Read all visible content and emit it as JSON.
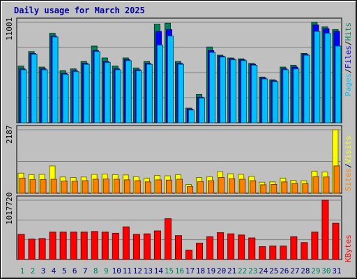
{
  "title": "Daily usage for March 2025",
  "colors": {
    "hits": "#00805c",
    "files": "#0000ff",
    "pages": "#00c0ff",
    "visits": "#ffff00",
    "sites": "#ff8000",
    "kbytes": "#ff0000",
    "weekend_day": "#00805c",
    "weekday": "#000080",
    "grid": "#808080",
    "panel_bg": "#c0c0c0"
  },
  "side_labels": {
    "top": [
      "Pages",
      "/",
      "Files",
      "/",
      "Hits"
    ],
    "mid": [
      "Sites",
      "/",
      "Visits"
    ],
    "bot": [
      "KBytes"
    ]
  },
  "chart_data": [
    {
      "type": "bar",
      "title": "Daily usage for March 2025",
      "ylabel_max": "11001",
      "ylim": [
        0,
        11001
      ],
      "categories": [
        "1",
        "2",
        "3",
        "4",
        "5",
        "6",
        "7",
        "8",
        "9",
        "10",
        "11",
        "12",
        "13",
        "14",
        "15",
        "16",
        "17",
        "18",
        "19",
        "20",
        "21",
        "22",
        "23",
        "24",
        "25",
        "26",
        "27",
        "28",
        "29",
        "30",
        "31"
      ],
      "weekend_days": [
        "1",
        "2",
        "8",
        "9",
        "15",
        "16",
        "22",
        "23",
        "29",
        "30"
      ],
      "series": [
        {
          "name": "Hits",
          "values": [
            6200,
            7800,
            6100,
            9800,
            5700,
            5900,
            6700,
            8400,
            7100,
            6200,
            7100,
            6000,
            6700,
            10800,
            10900,
            6700,
            1600,
            3100,
            8300,
            7400,
            7100,
            7000,
            6500,
            5000,
            4700,
            6100,
            6300,
            7600,
            11001,
            10500,
            10200
          ]
        },
        {
          "name": "Files",
          "values": [
            5900,
            7600,
            5900,
            9500,
            5400,
            5700,
            6500,
            7900,
            6700,
            5900,
            6900,
            5800,
            6500,
            10000,
            10200,
            6500,
            1500,
            2800,
            7900,
            7300,
            7000,
            6900,
            6400,
            4900,
            4600,
            5900,
            6100,
            7500,
            10700,
            10300,
            10000
          ]
        },
        {
          "name": "Pages",
          "values": [
            5800,
            7500,
            5800,
            9400,
            5300,
            5600,
            6400,
            7800,
            6600,
            5800,
            6800,
            5700,
            6400,
            8500,
            9500,
            6400,
            1400,
            2700,
            7700,
            7200,
            6900,
            6800,
            6300,
            4800,
            4500,
            5800,
            5900,
            7400,
            10000,
            9800,
            8400
          ]
        }
      ]
    },
    {
      "type": "bar",
      "ylabel_max": "2187",
      "ylim": [
        0,
        2187
      ],
      "categories": [
        "1",
        "2",
        "3",
        "4",
        "5",
        "6",
        "7",
        "8",
        "9",
        "10",
        "11",
        "12",
        "13",
        "14",
        "15",
        "16",
        "17",
        "18",
        "19",
        "20",
        "21",
        "22",
        "23",
        "24",
        "25",
        "26",
        "27",
        "28",
        "29",
        "30",
        "31"
      ],
      "series": [
        {
          "name": "Visits",
          "values": [
            690,
            640,
            650,
            940,
            560,
            540,
            560,
            650,
            660,
            640,
            630,
            570,
            520,
            610,
            600,
            640,
            300,
            540,
            570,
            740,
            670,
            650,
            580,
            380,
            390,
            520,
            440,
            430,
            760,
            730,
            2187
          ]
        },
        {
          "name": "Sites",
          "values": [
            520,
            470,
            470,
            480,
            420,
            410,
            430,
            480,
            490,
            480,
            460,
            430,
            390,
            460,
            450,
            480,
            230,
            400,
            430,
            540,
            500,
            480,
            430,
            290,
            300,
            390,
            340,
            330,
            570,
            560,
            940
          ]
        }
      ]
    },
    {
      "type": "bar",
      "ylabel_max": "1017720",
      "ylim": [
        0,
        1017720
      ],
      "categories": [
        "1",
        "2",
        "3",
        "4",
        "5",
        "6",
        "7",
        "8",
        "9",
        "10",
        "11",
        "12",
        "13",
        "14",
        "15",
        "16",
        "17",
        "18",
        "19",
        "20",
        "21",
        "22",
        "23",
        "24",
        "25",
        "26",
        "27",
        "28",
        "29",
        "30",
        "31"
      ],
      "series": [
        {
          "name": "KBytes",
          "values": [
            430000,
            350000,
            360000,
            470000,
            470000,
            470000,
            470000,
            480000,
            470000,
            450000,
            560000,
            430000,
            440000,
            490000,
            700000,
            410000,
            160000,
            280000,
            390000,
            460000,
            440000,
            420000,
            370000,
            220000,
            230000,
            230000,
            390000,
            290000,
            470000,
            1017720,
            620000
          ]
        }
      ]
    }
  ]
}
